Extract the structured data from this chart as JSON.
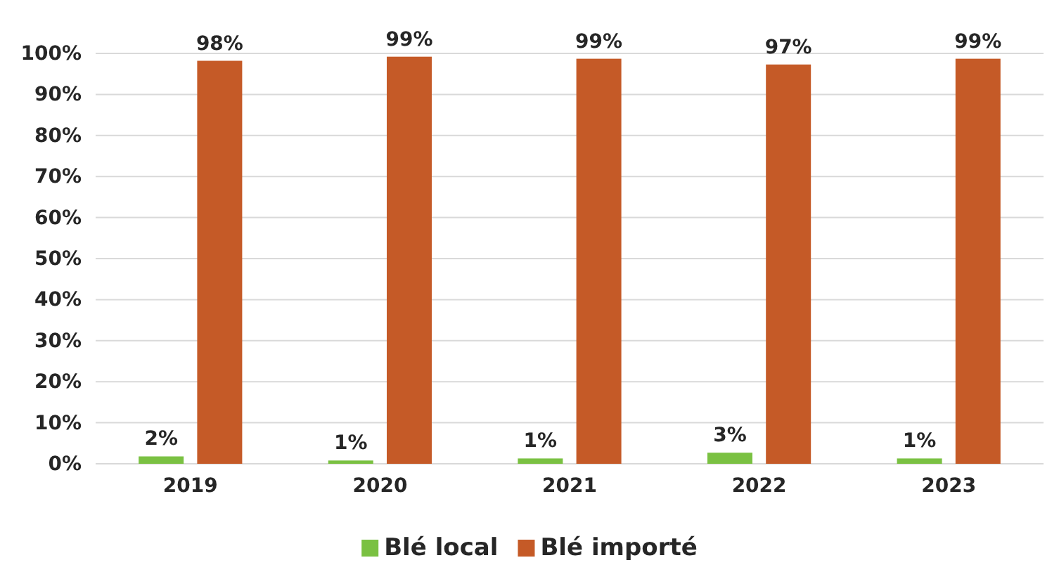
{
  "chart_data": {
    "type": "bar",
    "categories": [
      "2019",
      "2020",
      "2021",
      "2022",
      "2023"
    ],
    "series": [
      {
        "name": "Blé local",
        "color": "#7ac142",
        "values": [
          1.8,
          0.8,
          1.3,
          2.7,
          1.3
        ],
        "value_labels": [
          "2%",
          "1%",
          "1%",
          "3%",
          "1%"
        ]
      },
      {
        "name": "Blé importé",
        "color": "#c55a27",
        "values": [
          98.2,
          99.2,
          98.7,
          97.3,
          98.7
        ],
        "value_labels": [
          "98%",
          "99%",
          "99%",
          "97%",
          "99%"
        ]
      }
    ],
    "ylim": [
      0,
      100
    ],
    "yticks": [
      {
        "value": 0,
        "label": "0%"
      },
      {
        "value": 10,
        "label": "10%"
      },
      {
        "value": 20,
        "label": "20%"
      },
      {
        "value": 30,
        "label": "30%"
      },
      {
        "value": 40,
        "label": "40%"
      },
      {
        "value": 50,
        "label": "50%"
      },
      {
        "value": 60,
        "label": "60%"
      },
      {
        "value": 70,
        "label": "70%"
      },
      {
        "value": 80,
        "label": "80%"
      },
      {
        "value": 90,
        "label": "90%"
      },
      {
        "value": 100,
        "label": "100%"
      }
    ],
    "grid": "y",
    "legend": "bottom"
  }
}
